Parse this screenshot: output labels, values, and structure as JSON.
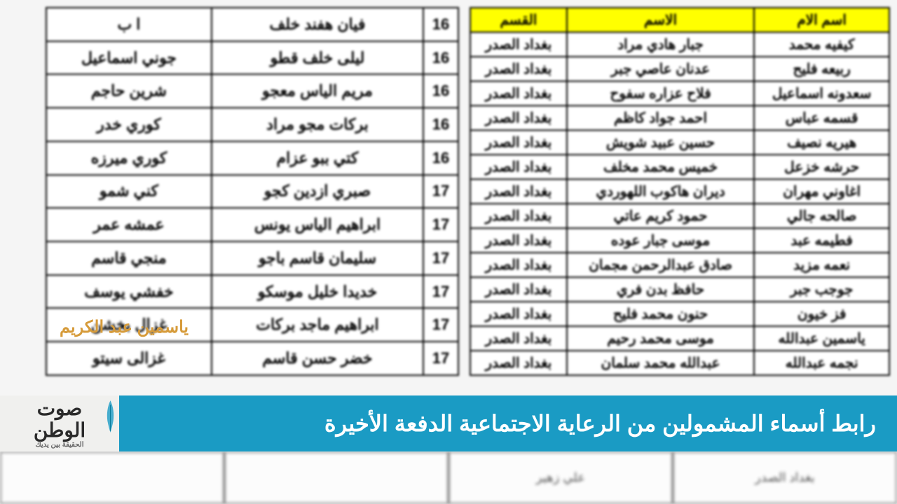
{
  "tableLeft": {
    "headers": [
      "اسم الام",
      "الاسم",
      "القسم"
    ],
    "rows": [
      [
        "كيفيه محمد",
        "جبار هادي مراد",
        "بغداد الصدر"
      ],
      [
        "ربيعه فليح",
        "عدنان عاصي جبر",
        "بغداد الصدر"
      ],
      [
        "سعدونه اسماعيل",
        "فلاح عزاره سفوح",
        "بغداد الصدر"
      ],
      [
        "قسمه عباس",
        "احمد جواد كاظم",
        "بغداد الصدر"
      ],
      [
        "هيريه نصيف",
        "حسين عبيد شويش",
        "بغداد الصدر"
      ],
      [
        "حرشه خزعل",
        "خميس محمد مخلف",
        "بغداد الصدر"
      ],
      [
        "اغاوني مهران",
        "ديران هاكوب اللهوردي",
        "بغداد الصدر"
      ],
      [
        "صالحه جالي",
        "حمود كريم عاتي",
        "بغداد الصدر"
      ],
      [
        "فطيمه عبد",
        "موسى جبار عوده",
        "بغداد الصدر"
      ],
      [
        "نعمه مزيد",
        "صادق عبدالرحمن مجمان",
        "بغداد الصدر"
      ],
      [
        "جوجب جبر",
        "حافظ بدن فري",
        "بغداد الصدر"
      ],
      [
        "فز خيون",
        "حنون محمد فليح",
        "بغداد الصدر"
      ],
      [
        "ياسمين عبدالله",
        "موسى محمد رحيم",
        "بغداد الصدر"
      ],
      [
        "نجمه عبدالله",
        "عبدالله محمد سلمان",
        "بغداد الصدر"
      ]
    ]
  },
  "tableRight": {
    "rows": [
      [
        "16",
        "فيان هفند خلف",
        "ا ب"
      ],
      [
        "16",
        "ليلى خلف قطو",
        "جوني اسماعيل"
      ],
      [
        "16",
        "مريم الياس معجو",
        "شرين حاجم"
      ],
      [
        "16",
        "بركات مجو مراد",
        "كوري خدر"
      ],
      [
        "16",
        "كتي ببو عزام",
        "كوري ميرزه"
      ],
      [
        "17",
        "صبري ازدين كجو",
        "كني شمو"
      ],
      [
        "17",
        "ابراهيم الياس يونس",
        "عمشه عمر"
      ],
      [
        "17",
        "سليمان قاسم باجو",
        "منجي قاسم"
      ],
      [
        "17",
        "خديدا خليل موسكو",
        "خفشي يوسف"
      ],
      [
        "17",
        "ابراهيم ماجد بركات",
        "غزال بخشن"
      ],
      [
        "17",
        "خضر حسن قاسم",
        "غزالى سيتو"
      ]
    ]
  },
  "watermark": "ياسمين عبد الكريم",
  "logo": {
    "line1": "صوت",
    "line2": "الوطن",
    "tagline": "الحقيقة بين يديك"
  },
  "bannerTitle": "رابط أسماء المشمولين من الرعاية الاجتماعية الدفعة الأخيرة",
  "bottomCells": [
    "بغداد الصدر",
    "علي زهير",
    "",
    ""
  ],
  "colors": {
    "headerBg": "#ffff00",
    "bannerBg": "#1a9bc4",
    "watermarkColor": "#d69b3a"
  }
}
